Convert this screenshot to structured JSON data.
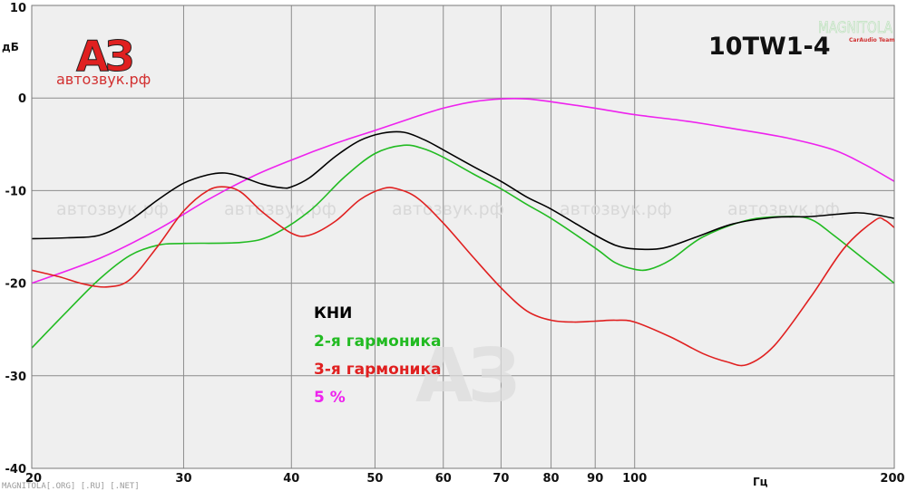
{
  "chart_data": {
    "type": "line",
    "title": "10TW1-4",
    "xlabel": "Гц",
    "ylabel": "дБ",
    "x_scale": "log",
    "xlim": [
      20,
      200
    ],
    "ylim": [
      -40,
      10
    ],
    "x_ticks": [
      "20",
      "30",
      "40",
      "50",
      "60",
      "70",
      "80",
      "90",
      "100",
      "200"
    ],
    "y_ticks": [
      "10",
      "0",
      "-10",
      "-20",
      "-30",
      "-40"
    ],
    "grid": true,
    "legend_position": "center",
    "series": [
      {
        "name": "КНИ",
        "color": "#000000",
        "points": [
          [
            20,
            -15.2
          ],
          [
            22,
            -15.1
          ],
          [
            24,
            -14.8
          ],
          [
            26,
            -13.2
          ],
          [
            28,
            -11
          ],
          [
            30,
            -9.2
          ],
          [
            32,
            -8.3
          ],
          [
            33.5,
            -8.1
          ],
          [
            35,
            -8.5
          ],
          [
            37,
            -9.3
          ],
          [
            39,
            -9.7
          ],
          [
            40,
            -9.6
          ],
          [
            42,
            -8.6
          ],
          [
            45,
            -6.3
          ],
          [
            48,
            -4.6
          ],
          [
            51,
            -3.8
          ],
          [
            54,
            -3.7
          ],
          [
            57,
            -4.5
          ],
          [
            60,
            -5.6
          ],
          [
            65,
            -7.4
          ],
          [
            70,
            -9
          ],
          [
            75,
            -10.7
          ],
          [
            80,
            -12
          ],
          [
            90,
            -14.8
          ],
          [
            95,
            -15.9
          ],
          [
            100,
            -16.3
          ],
          [
            108,
            -16.2
          ],
          [
            118,
            -15
          ],
          [
            130,
            -13.6
          ],
          [
            145,
            -12.9
          ],
          [
            160,
            -12.8
          ],
          [
            180,
            -12.4
          ],
          [
            190,
            -12.6
          ],
          [
            200,
            -13
          ]
        ]
      },
      {
        "name": "2-я гармоника",
        "color": "#22bb22",
        "points": [
          [
            20,
            -27
          ],
          [
            22,
            -23
          ],
          [
            24,
            -19.5
          ],
          [
            26,
            -17
          ],
          [
            28,
            -15.9
          ],
          [
            30,
            -15.7
          ],
          [
            35,
            -15.6
          ],
          [
            38,
            -14.8
          ],
          [
            42,
            -12.2
          ],
          [
            46,
            -8.6
          ],
          [
            50,
            -6
          ],
          [
            54,
            -5.1
          ],
          [
            57,
            -5.5
          ],
          [
            60,
            -6.4
          ],
          [
            65,
            -8.2
          ],
          [
            70,
            -9.8
          ],
          [
            75,
            -11.5
          ],
          [
            80,
            -13
          ],
          [
            90,
            -16.2
          ],
          [
            95,
            -17.8
          ],
          [
            100,
            -18.5
          ],
          [
            104,
            -18.5
          ],
          [
            110,
            -17.5
          ],
          [
            120,
            -15
          ],
          [
            135,
            -13.2
          ],
          [
            150,
            -12.8
          ],
          [
            160,
            -13.1
          ],
          [
            170,
            -14.8
          ],
          [
            185,
            -17.5
          ],
          [
            200,
            -20
          ]
        ]
      },
      {
        "name": "3-я гармоника",
        "color": "#e02020",
        "points": [
          [
            20,
            -18.6
          ],
          [
            21.5,
            -19.3
          ],
          [
            23,
            -20.1
          ],
          [
            24.5,
            -20.4
          ],
          [
            26,
            -19.6
          ],
          [
            28,
            -16
          ],
          [
            30,
            -12.2
          ],
          [
            32,
            -10
          ],
          [
            33.5,
            -9.6
          ],
          [
            35,
            -10.2
          ],
          [
            37,
            -12.3
          ],
          [
            40,
            -14.6
          ],
          [
            42,
            -14.8
          ],
          [
            45,
            -13.3
          ],
          [
            48,
            -11
          ],
          [
            51,
            -9.8
          ],
          [
            53,
            -9.8
          ],
          [
            56,
            -10.8
          ],
          [
            60,
            -13.5
          ],
          [
            65,
            -17.2
          ],
          [
            70,
            -20.5
          ],
          [
            75,
            -23
          ],
          [
            80,
            -24
          ],
          [
            85,
            -24.2
          ],
          [
            90,
            -24.1
          ],
          [
            95,
            -24
          ],
          [
            100,
            -24.2
          ],
          [
            110,
            -25.8
          ],
          [
            120,
            -27.6
          ],
          [
            128,
            -28.5
          ],
          [
            135,
            -28.8
          ],
          [
            145,
            -26.8
          ],
          [
            160,
            -21.5
          ],
          [
            175,
            -16.2
          ],
          [
            190,
            -13.2
          ],
          [
            195,
            -13.2
          ],
          [
            200,
            -14
          ]
        ]
      },
      {
        "name": "5 %",
        "color": "#ee22ee",
        "points": [
          [
            20,
            -20
          ],
          [
            24,
            -17.3
          ],
          [
            28,
            -14.2
          ],
          [
            32,
            -11
          ],
          [
            36,
            -8.5
          ],
          [
            40,
            -6.7
          ],
          [
            45,
            -4.9
          ],
          [
            50,
            -3.5
          ],
          [
            55,
            -2.2
          ],
          [
            60,
            -1.1
          ],
          [
            65,
            -0.4
          ],
          [
            70,
            -0.1
          ],
          [
            75,
            -0.1
          ],
          [
            80,
            -0.4
          ],
          [
            90,
            -1.1
          ],
          [
            100,
            -1.8
          ],
          [
            115,
            -2.5
          ],
          [
            130,
            -3.3
          ],
          [
            150,
            -4.3
          ],
          [
            170,
            -5.6
          ],
          [
            185,
            -7.2
          ],
          [
            200,
            -9
          ]
        ]
      }
    ]
  },
  "logo": {
    "mark": "АЗ",
    "site": "автозвук.рф"
  },
  "corner_brand": {
    "name": "MAGNITOLA",
    "team": "CarAudio Team"
  },
  "watermark": {
    "text": "автозвук.рф",
    "mark": "АЗ"
  },
  "footer": {
    "text": "MAGNITOLA[.ORG] [.RU] [.NET]"
  }
}
